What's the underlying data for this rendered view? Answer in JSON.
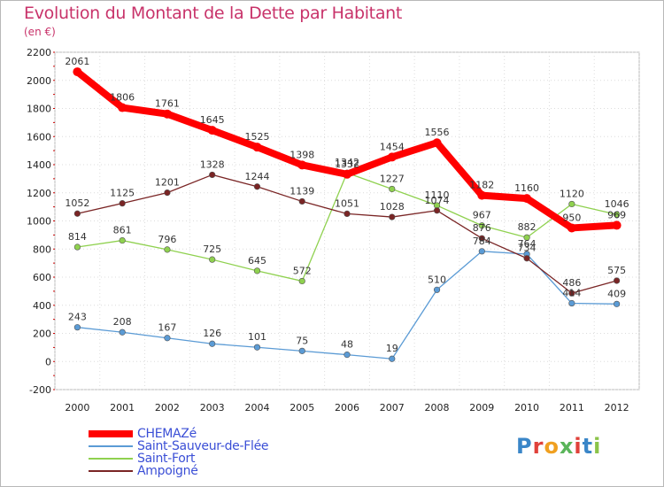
{
  "header": {
    "title": "Evolution du Montant de la Dette par Habitant",
    "unit": "(en €)"
  },
  "logo": {
    "text": "Proxiti",
    "letter_colors": [
      "#3a86c8",
      "#e0413a",
      "#f0a020",
      "#5ab55a",
      "#e0413a",
      "#3a86c8",
      "#8bc34a"
    ]
  },
  "chart_data": {
    "type": "line",
    "title": "Evolution du Montant de la Dette par Habitant",
    "subtitle": "(en €)",
    "xlabel": "",
    "ylabel": "",
    "x": [
      "2000",
      "2001",
      "2002",
      "2003",
      "2004",
      "2005",
      "2006",
      "2007",
      "2008",
      "2009",
      "2010",
      "2011",
      "2012"
    ],
    "ylim": [
      -200,
      2200
    ],
    "yticks": [
      -200,
      0,
      200,
      400,
      600,
      800,
      1000,
      1200,
      1400,
      1600,
      1800,
      2000,
      2200
    ],
    "grid": true,
    "legend": "bottom-left",
    "series": [
      {
        "name": "CHEMAZé",
        "color": "#ff0000",
        "values": [
          2061,
          1806,
          1761,
          1645,
          1525,
          1398,
          1332,
          1454,
          1556,
          1182,
          1160,
          950,
          969
        ],
        "labels": [
          "2061",
          "1806",
          "1761",
          "1645",
          "1525",
          "1398",
          "1332",
          "1454",
          "1556",
          "1182",
          "1160",
          "950",
          "969"
        ]
      },
      {
        "name": "Saint-Sauveur-de-Flée",
        "color": "#5b9bd5",
        "values": [
          243,
          208,
          167,
          126,
          101,
          75,
          48,
          19,
          510,
          784,
          764,
          414,
          409
        ],
        "labels": [
          "243",
          "208",
          "167",
          "126",
          "101",
          "75",
          "48",
          "19",
          "510",
          "784",
          "764",
          "414",
          "409"
        ]
      },
      {
        "name": "Saint-Fort",
        "color": "#8fd14f",
        "values": [
          814,
          861,
          796,
          725,
          645,
          572,
          1342,
          1227,
          1110,
          967,
          882,
          1120,
          1046
        ],
        "labels": [
          "814",
          "861",
          "796",
          "725",
          "645",
          "572",
          "1342",
          "1227",
          "1110",
          "967",
          "882",
          "1120",
          "1046"
        ]
      },
      {
        "name": "Ampoigné",
        "color": "#7a2525",
        "values": [
          1052,
          1125,
          1201,
          1328,
          1244,
          1139,
          1051,
          1028,
          1074,
          876,
          734,
          486,
          575
        ],
        "labels": [
          "1052",
          "1125",
          "1201",
          "1328",
          "1244",
          "1139",
          "1051",
          "1028",
          "1074",
          "876",
          "734",
          "486",
          "575"
        ]
      }
    ]
  }
}
